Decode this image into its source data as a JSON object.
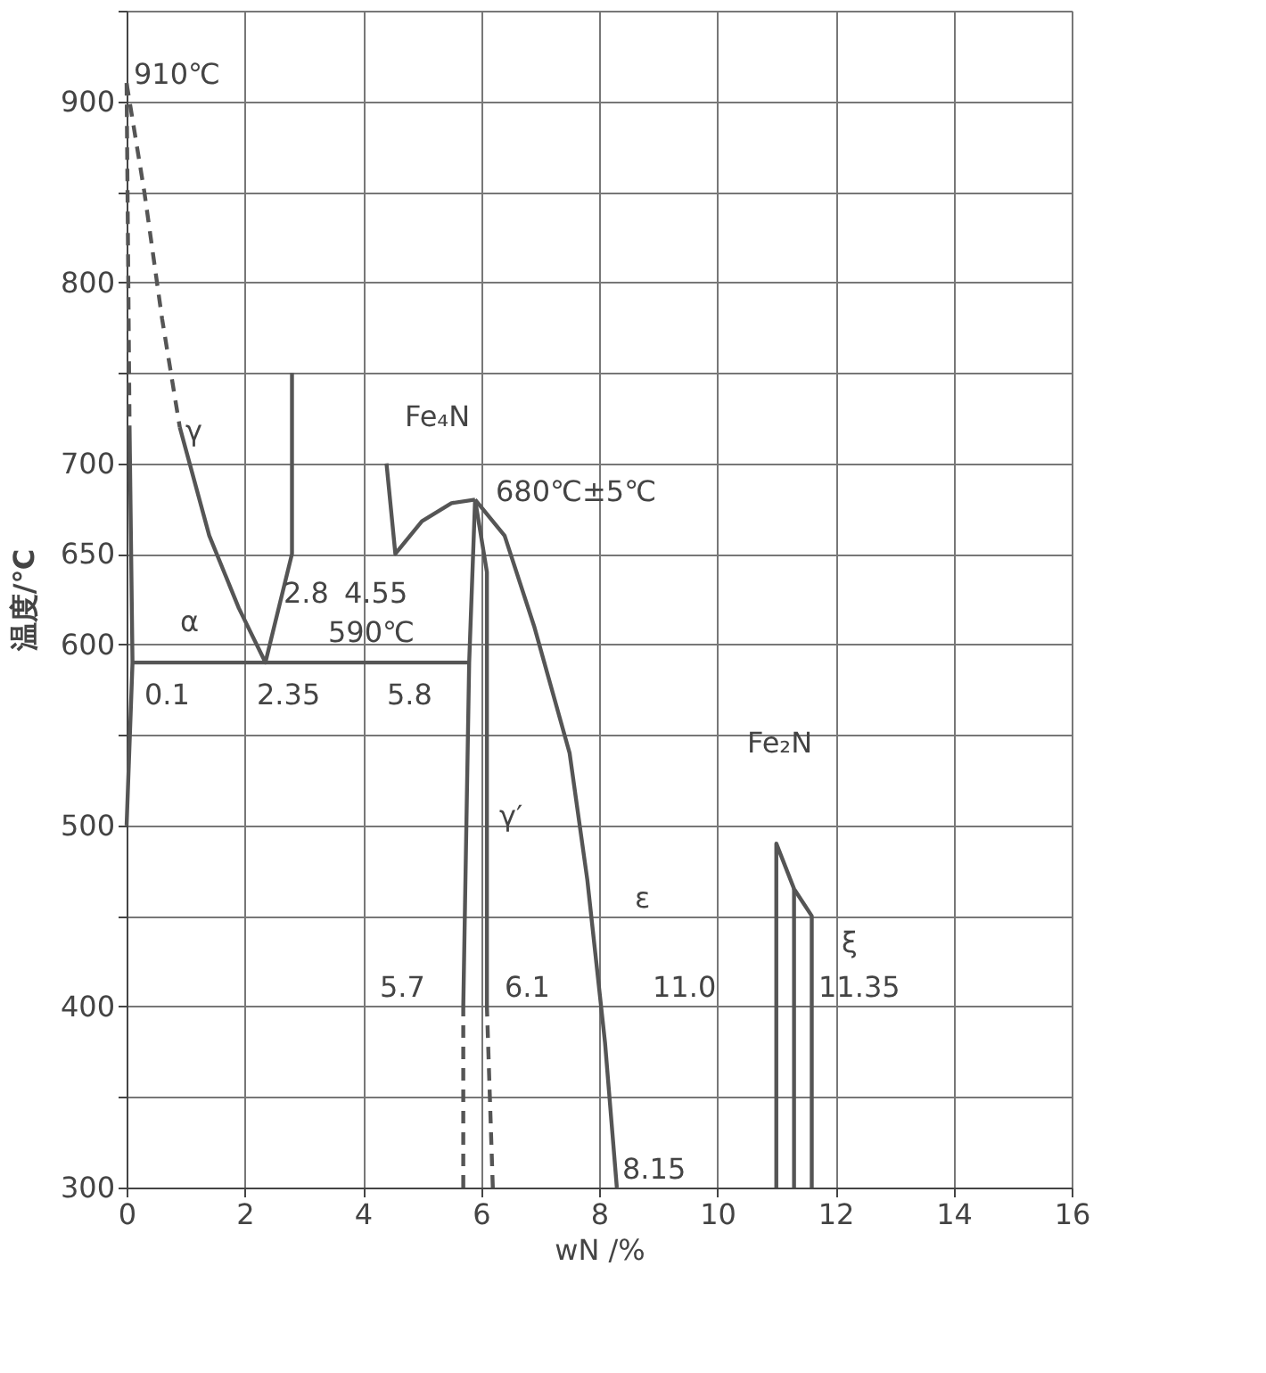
{
  "chart_data": {
    "type": "line",
    "xlabel": "wN /%",
    "ylabel": "温度/℃",
    "xlim": [
      0,
      16
    ],
    "xticks": [
      0,
      2,
      4,
      6,
      8,
      10,
      12,
      14,
      16
    ],
    "ylim": [
      300,
      950
    ],
    "yticks": [
      300,
      {
        "value": 350,
        "label": null
      },
      400,
      {
        "value": 450,
        "label": null
      },
      500,
      {
        "value": 550,
        "label": null
      },
      600,
      650,
      700,
      {
        "value": 750,
        "label": null
      },
      800,
      {
        "value": 850,
        "label": null
      },
      900,
      {
        "value": 950,
        "label": null
      }
    ],
    "grid": true,
    "marker": "none",
    "series": [
      {
        "color": "#555555",
        "line_style": "dashed",
        "x": [
          0,
          0.05
        ],
        "values": [
          910,
          720
        ]
      },
      {
        "color": "#555555",
        "line_style": "dashed",
        "x": [
          0,
          0.3,
          0.6,
          0.9
        ],
        "values": [
          910,
          850,
          780,
          720
        ]
      },
      {
        "color": "#555555",
        "line_style": "solid",
        "x": [
          0,
          0.1,
          0.05
        ],
        "values": [
          500,
          590,
          720
        ]
      },
      {
        "color": "#555555",
        "line_style": "solid",
        "x": [
          0.9,
          1.4,
          1.9,
          2.35,
          2.8,
          2.8
        ],
        "values": [
          720,
          660,
          620,
          590,
          650,
          750
        ]
      },
      {
        "color": "#555555",
        "line_style": "solid",
        "x": [
          0.1,
          5.8
        ],
        "values": [
          590,
          590
        ]
      },
      {
        "color": "#555555",
        "line_style": "solid",
        "x": [
          4.4,
          4.55,
          5.0,
          5.5,
          5.9
        ],
        "values": [
          700,
          650,
          668,
          678,
          680
        ]
      },
      {
        "color": "#555555",
        "line_style": "solid",
        "x": [
          5.7,
          5.8,
          5.9
        ],
        "values": [
          400,
          590,
          680
        ]
      },
      {
        "color": "#555555",
        "line_style": "dashed",
        "x": [
          5.7,
          5.7
        ],
        "values": [
          300,
          400
        ]
      },
      {
        "color": "#555555",
        "line_style": "solid",
        "x": [
          5.9,
          6.1,
          6.1
        ],
        "values": [
          680,
          640,
          400
        ]
      },
      {
        "color": "#555555",
        "line_style": "dashed",
        "x": [
          6.2,
          6.1
        ],
        "values": [
          300,
          400
        ]
      },
      {
        "color": "#555555",
        "line_style": "solid",
        "x": [
          5.9,
          6.4,
          6.9,
          7.5,
          7.8,
          8.1,
          8.3
        ],
        "values": [
          680,
          660,
          610,
          540,
          470,
          380,
          300
        ]
      },
      {
        "color": "#555555",
        "line_style": "solid",
        "x": [
          11,
          11,
          11.3,
          11.6,
          11.6
        ],
        "values": [
          300,
          490,
          465,
          450,
          300
        ]
      },
      {
        "color": "#555555",
        "line_style": "solid",
        "x": [
          11.3,
          11.3
        ],
        "values": [
          465,
          300
        ]
      }
    ],
    "annotations": [
      "910℃",
      "γ",
      "α",
      "590℃",
      "0.1",
      "2.35",
      "5.8",
      "2.8",
      "4.55",
      "Fe₄N",
      "680℃±5℃",
      "γ′",
      "ε",
      "5.7",
      "6.1",
      "11.0",
      "11.35",
      "8.15",
      "Fe₂N",
      "ξ"
    ]
  }
}
